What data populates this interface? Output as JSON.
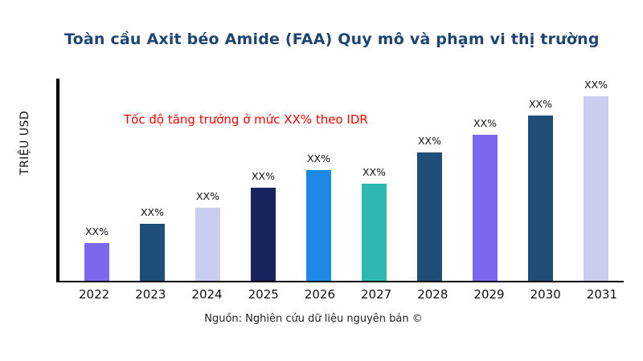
{
  "chart_data": {
    "type": "bar",
    "title": "Toàn cầu Axit béo Amide (FAA) Quy mô và phạm vi thị trường",
    "ylabel": "TRIỆU USD",
    "xlabel": "",
    "annotation": "Tốc độ tăng trưởng ở mức XX% theo IDR",
    "annotation_color": "#fe0000",
    "source": "Nguồn: Nghiên cứu dữ liệu nguyên bản ©",
    "bar_value_label": "XX%",
    "categories": [
      "2022",
      "2023",
      "2024",
      "2025",
      "2026",
      "2027",
      "2028",
      "2029",
      "2030",
      "2031"
    ],
    "values": [
      47,
      71,
      91,
      116,
      138,
      121,
      160,
      182,
      206,
      230
    ],
    "value_units": "relative-index (bars labeled XX%, no numeric axis shown)",
    "colors": [
      "#7b68ee",
      "#1f4e79",
      "#c9cef0",
      "#19245c",
      "#1e88e5",
      "#2eb8b2",
      "#1f4e79",
      "#7b68ee",
      "#1f4e79",
      "#c9cef0"
    ],
    "ylim": [
      0,
      250
    ],
    "grid": false,
    "legend": "none"
  }
}
